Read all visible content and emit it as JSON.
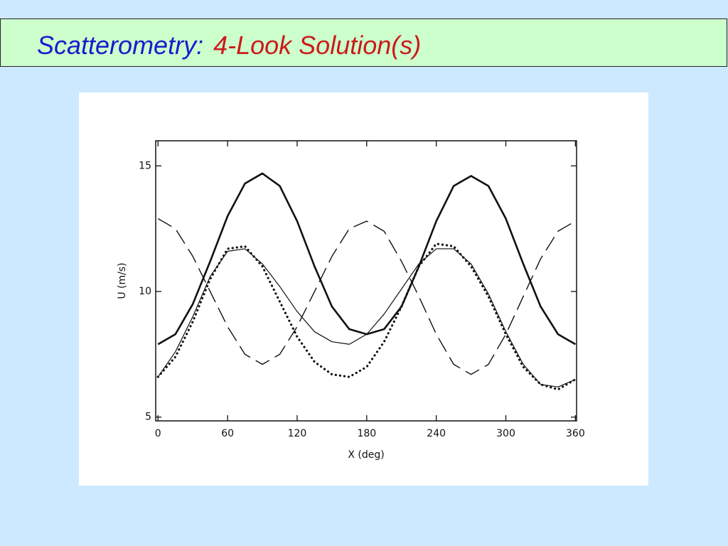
{
  "slide": {
    "title_main": "Scatterometry",
    "title_separator": ":",
    "title_sub": "4-Look Solution(s)"
  },
  "chart_data": {
    "type": "line",
    "x_label": "X (deg)",
    "y_label": "U (m/s)",
    "x": [
      0,
      15,
      30,
      45,
      60,
      75,
      90,
      105,
      120,
      135,
      150,
      165,
      180,
      195,
      210,
      225,
      240,
      255,
      270,
      285,
      300,
      315,
      330,
      345,
      360
    ],
    "series": [
      {
        "color": "#111111",
        "style": "solid",
        "width": 2.6,
        "values": [
          7.9,
          8.3,
          9.5,
          11.2,
          13.0,
          14.3,
          14.7,
          14.2,
          12.8,
          11.0,
          9.4,
          8.5,
          8.3,
          8.5,
          9.4,
          11.0,
          12.8,
          14.2,
          14.6,
          14.2,
          12.9,
          11.1,
          9.4,
          8.3,
          7.9
        ]
      },
      {
        "color": "#111111",
        "style": "dashed",
        "width": 1.4,
        "values": [
          12.9,
          12.5,
          11.4,
          10.0,
          8.6,
          7.5,
          7.1,
          7.5,
          8.6,
          10.0,
          11.4,
          12.5,
          12.8,
          12.4,
          11.2,
          9.8,
          8.3,
          7.1,
          6.7,
          7.1,
          8.3,
          9.8,
          11.3,
          12.4,
          12.8
        ]
      },
      {
        "color": "#111111",
        "style": "solid",
        "width": 1.2,
        "values": [
          6.6,
          7.6,
          9.0,
          10.6,
          11.6,
          11.7,
          11.1,
          10.2,
          9.2,
          8.4,
          8.0,
          7.9,
          8.3,
          9.1,
          10.1,
          11.1,
          11.7,
          11.7,
          11.1,
          9.9,
          8.4,
          7.1,
          6.3,
          6.2,
          6.5
        ]
      },
      {
        "color": "#111111",
        "style": "dotted",
        "width": 3.2,
        "values": [
          6.6,
          7.4,
          8.8,
          10.5,
          11.7,
          11.8,
          11.0,
          9.6,
          8.2,
          7.2,
          6.7,
          6.6,
          7.0,
          8.0,
          9.4,
          11.0,
          11.9,
          11.8,
          11.0,
          9.8,
          8.3,
          7.0,
          6.3,
          6.1,
          6.5
        ]
      }
    ],
    "xlim": [
      -2,
      361
    ],
    "ylim": [
      4.85,
      16
    ],
    "xticks": [
      0,
      60,
      120,
      180,
      240,
      300,
      360
    ],
    "yticks": [
      5,
      10,
      15
    ],
    "grid": false
  }
}
